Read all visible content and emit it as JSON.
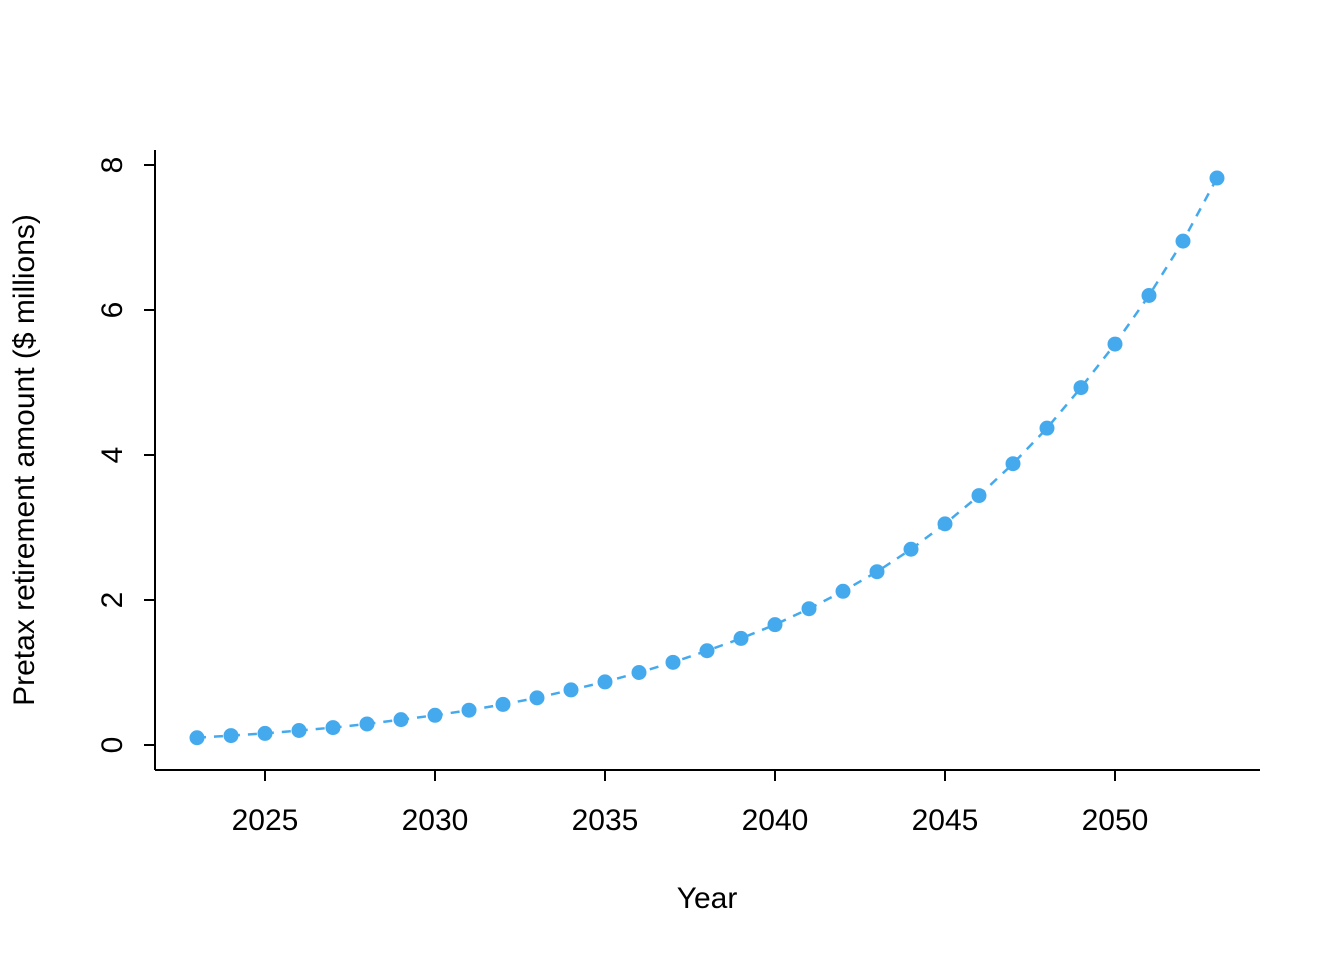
{
  "chart_data": {
    "type": "scatter",
    "title": "",
    "xlabel": "Year",
    "ylabel": "Pretax retirement amount ($ millions)",
    "x": [
      2023,
      2024,
      2025,
      2026,
      2027,
      2028,
      2029,
      2030,
      2031,
      2032,
      2033,
      2034,
      2035,
      2036,
      2037,
      2038,
      2039,
      2040,
      2041,
      2042,
      2043,
      2044,
      2045,
      2046,
      2047,
      2048,
      2049,
      2050,
      2051,
      2052,
      2053
    ],
    "y": [
      0.1,
      0.13,
      0.16,
      0.2,
      0.24,
      0.29,
      0.35,
      0.41,
      0.48,
      0.56,
      0.65,
      0.76,
      0.87,
      1.0,
      1.14,
      1.3,
      1.47,
      1.66,
      1.88,
      2.12,
      2.39,
      2.7,
      3.05,
      3.44,
      3.88,
      4.37,
      4.93,
      5.53,
      6.2,
      6.95,
      7.82
    ],
    "xticks": [
      2025,
      2030,
      2035,
      2040,
      2045,
      2050
    ],
    "yticks": [
      0,
      2,
      4,
      6,
      8
    ],
    "xlim": [
      2022.5,
      2054.5
    ],
    "ylim": [
      0,
      8
    ],
    "point_color": "#45AAED",
    "line_color": "#45AAED",
    "line_style": "dashed",
    "marker": "filled-circle",
    "grid": false,
    "legend": "none",
    "axis_color": "#000000"
  }
}
